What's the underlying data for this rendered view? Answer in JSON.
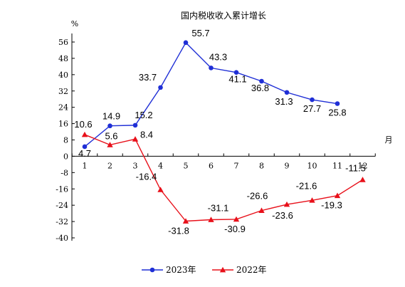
{
  "chart_data": {
    "type": "line",
    "title": "国内税收收入累计增长",
    "ylabel": "%",
    "xlabel": "月",
    "categories": [
      "1",
      "2",
      "3",
      "4",
      "5",
      "6",
      "7",
      "8",
      "9",
      "10",
      "11",
      "12"
    ],
    "ylim": [
      -40,
      56
    ],
    "yticks": [
      56,
      48,
      40,
      32,
      24,
      16,
      8,
      0,
      -8,
      -16,
      -24,
      -32,
      -40
    ],
    "legend": "bottom",
    "series": [
      {
        "name": "2023年",
        "color": "#1f2fd6",
        "marker": "circle",
        "x": [
          1,
          2,
          3,
          4,
          5,
          6,
          7,
          8,
          9,
          10,
          11
        ],
        "values": [
          4.7,
          14.9,
          15.2,
          33.7,
          55.7,
          43.3,
          41.1,
          36.8,
          31.3,
          27.7,
          25.8
        ],
        "labels": [
          "4.7",
          "14.9",
          "15.2",
          "33.7",
          "55.7",
          "43.3",
          "41.1",
          "36.8",
          "31.3",
          "27.7",
          "25.8"
        ]
      },
      {
        "name": "2022年",
        "color": "#e8101a",
        "marker": "triangle",
        "x": [
          1,
          2,
          3,
          4,
          5,
          6,
          7,
          8,
          9,
          10,
          11,
          12
        ],
        "values": [
          10.6,
          5.6,
          8.4,
          -16.4,
          -31.8,
          -31.1,
          -30.9,
          -26.6,
          -23.6,
          -21.6,
          -19.3,
          -11.5
        ],
        "labels": [
          "10.6",
          "5.6",
          "8.4",
          "-16.4",
          "-31.8",
          "-31.1",
          "-30.9",
          "-26.6",
          "-23.6",
          "-21.6",
          "-19.3",
          "-11.5"
        ]
      }
    ]
  }
}
